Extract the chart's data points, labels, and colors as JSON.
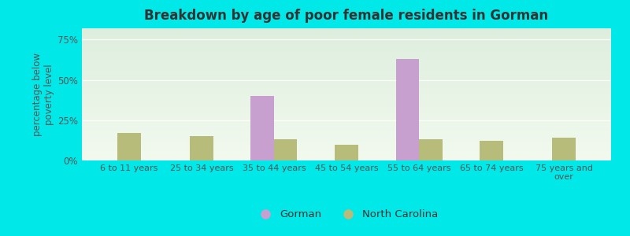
{
  "title": "Breakdown by age of poor female residents in Gorman",
  "categories": [
    "6 to 11 years",
    "25 to 34 years",
    "35 to 44 years",
    "45 to 54 years",
    "55 to 64 years",
    "65 to 74 years",
    "75 years and\nover"
  ],
  "gorman": [
    0,
    0,
    40,
    0,
    63,
    0,
    0
  ],
  "north_carolina": [
    17,
    15,
    13,
    10,
    13,
    12,
    14
  ],
  "gorman_color": "#c8a0d0",
  "nc_color": "#b8bc7a",
  "ylabel": "percentage below\npoverty level",
  "yticks": [
    0,
    25,
    50,
    75
  ],
  "ytick_labels": [
    "0%",
    "25%",
    "50%",
    "75%"
  ],
  "ylim": [
    0,
    82
  ],
  "legend_gorman": "Gorman",
  "legend_nc": "North Carolina",
  "bar_width": 0.32,
  "figsize": [
    8.0,
    3.0
  ],
  "dpi": 100,
  "fig_bg": "#00e8e8",
  "plot_bg_top": "#ddeedd",
  "plot_bg_bottom": "#f0f8ec"
}
